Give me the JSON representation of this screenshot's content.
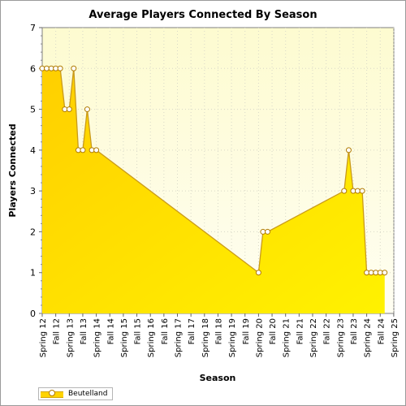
{
  "chart_data": {
    "type": "area",
    "title": "Average Players Connected By Season",
    "xlabel": "Season",
    "ylabel": "Players Connected",
    "ylim": [
      0,
      7
    ],
    "yticks": [
      0,
      1,
      2,
      3,
      4,
      5,
      6,
      7
    ],
    "categories": [
      "Spring 12",
      "Fall 12",
      "Spring 13",
      "Fall 13",
      "Spring 14",
      "Fall 14",
      "Spring 15",
      "Fall 15",
      "Spring 16",
      "Fall 16",
      "Spring 17",
      "Fall 17",
      "Spring 18",
      "Fall 18",
      "Spring 19",
      "Fall 19",
      "Spring 20",
      "Fall 20",
      "Spring 21",
      "Fall 21",
      "Spring 22",
      "Fall 22",
      "Spring 23",
      "Fall 23",
      "Spring 24",
      "Fall 24",
      "Spring 25"
    ],
    "grid": true,
    "legend_position": "bottom-left",
    "series": [
      {
        "name": "Beutelland",
        "color": "#ffd400",
        "points": [
          {
            "x": 0.0,
            "y": 6
          },
          {
            "x": 0.33,
            "y": 6
          },
          {
            "x": 0.67,
            "y": 6
          },
          {
            "x": 1.0,
            "y": 6
          },
          {
            "x": 1.33,
            "y": 6
          },
          {
            "x": 1.67,
            "y": 5
          },
          {
            "x": 2.0,
            "y": 5
          },
          {
            "x": 2.33,
            "y": 6
          },
          {
            "x": 2.67,
            "y": 4
          },
          {
            "x": 3.0,
            "y": 4
          },
          {
            "x": 3.33,
            "y": 5
          },
          {
            "x": 3.67,
            "y": 4
          },
          {
            "x": 4.0,
            "y": 4
          },
          {
            "x": 16.0,
            "y": 1
          },
          {
            "x": 16.33,
            "y": 2
          },
          {
            "x": 16.67,
            "y": 2
          },
          {
            "x": 22.33,
            "y": 3
          },
          {
            "x": 22.67,
            "y": 4
          },
          {
            "x": 23.0,
            "y": 3
          },
          {
            "x": 23.33,
            "y": 3
          },
          {
            "x": 23.67,
            "y": 3
          },
          {
            "x": 24.0,
            "y": 1
          },
          {
            "x": 24.33,
            "y": 1
          },
          {
            "x": 24.67,
            "y": 1
          },
          {
            "x": 25.0,
            "y": 1
          },
          {
            "x": 25.33,
            "y": 1
          }
        ]
      }
    ]
  }
}
